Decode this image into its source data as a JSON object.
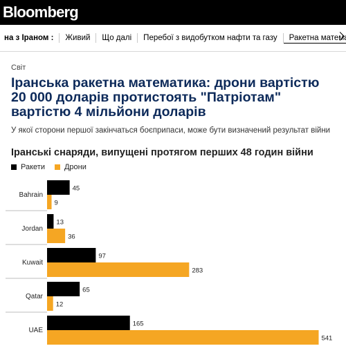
{
  "header": {
    "logo": "Bloomberg"
  },
  "nav": {
    "lead": "на з Іраном :",
    "items": [
      "Живий",
      "Що далі",
      "Перебої з видобутком нафти та газу",
      "Ракетна математика Ірану"
    ]
  },
  "article": {
    "section": "Світ",
    "headline": "Іранська ракетна математика: дрони вартістю 20 000 доларів протистоять \"Патріотам\" вартістю 4 мільйони доларів",
    "summary": "У якої сторони першої закінчаться боєприпаси, може бути визначений результат війни"
  },
  "chart_data": {
    "type": "bar",
    "orientation": "horizontal",
    "title": "Іранські снаряди, випущені протягом перших 48 годин війни",
    "categories": [
      "Bahrain",
      "Jordan",
      "Kuwait",
      "Qatar",
      "UAE"
    ],
    "series": [
      {
        "name": "Ракети",
        "values": [
          45,
          13,
          97,
          65,
          165
        ],
        "color": "#000000"
      },
      {
        "name": "Дрони",
        "values": [
          9,
          36,
          283,
          12,
          541
        ],
        "color": "#f5a623"
      }
    ],
    "legend_position": "top-left",
    "grid": false
  }
}
